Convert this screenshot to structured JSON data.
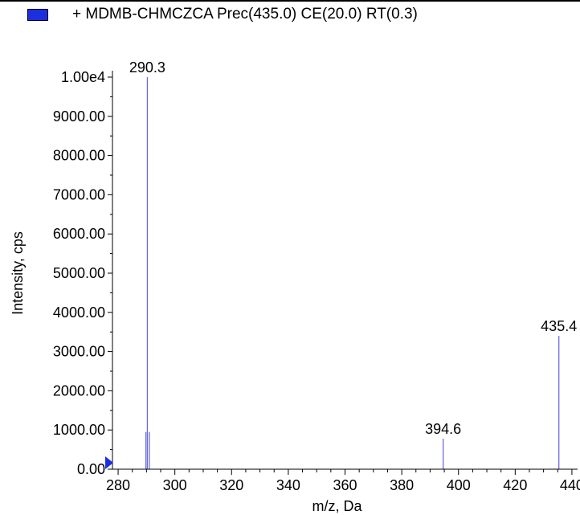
{
  "chart_data": {
    "type": "bar",
    "legend": {
      "label": "+ MDMB-CHMCZCA Prec(435.0) CE(20.0) RT(0.3)",
      "placement": "top-left",
      "color": "#1c2fe0"
    },
    "xlabel": "m/z, Da",
    "ylabel": "Intensity, cps",
    "xlim": [
      278,
      442
    ],
    "ylim": [
      0,
      10000
    ],
    "x_ticks": [
      280,
      300,
      320,
      340,
      360,
      380,
      400,
      420,
      440
    ],
    "x_tick_labels": [
      "280",
      "300",
      "320",
      "340",
      "360",
      "380",
      "400",
      "420",
      "440"
    ],
    "y_ticks": [
      0,
      1000,
      2000,
      3000,
      4000,
      5000,
      6000,
      7000,
      8000,
      9000,
      10000
    ],
    "y_tick_labels": [
      "0.00",
      "1000.00",
      "2000.00",
      "3000.00",
      "4000.00",
      "5000.00",
      "6000.00",
      "7000.00",
      "8000.00",
      "9000.00",
      "1.00e4"
    ],
    "series": [
      {
        "peaks": [
          {
            "x": 289.8,
            "y": 950
          },
          {
            "x": 290.3,
            "y": 10000,
            "label": "290.3"
          },
          {
            "x": 291.0,
            "y": 950
          },
          {
            "x": 394.6,
            "y": 780,
            "label": "394.6"
          },
          {
            "x": 435.4,
            "y": 3400,
            "label": "435.4"
          }
        ]
      }
    ],
    "series_color": "#6a6ae0",
    "grid": false
  }
}
